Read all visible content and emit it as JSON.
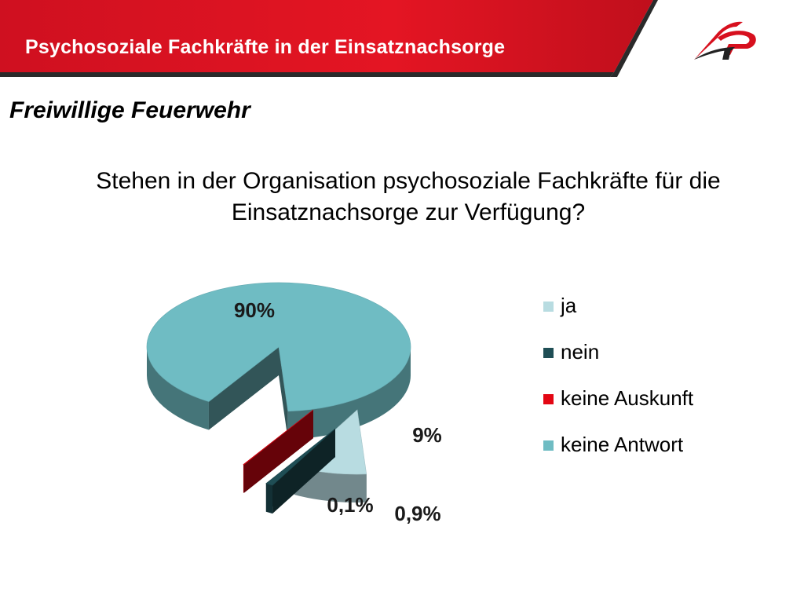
{
  "header": {
    "title": "Psychosoziale Fachkräfte in der Einsatznachsorge",
    "accent_color": "#d7101e"
  },
  "section_heading": "Freiwillige Feuerwehr",
  "question": "Stehen in der Organisation psychosoziale Fachkräfte für die Einsatznachsorge zur Verfügung?",
  "logo": {
    "icon": "organization-logo-icon"
  },
  "chart_data": {
    "type": "pie",
    "style": "3d-exploded",
    "title": "",
    "slices": [
      {
        "label": "ja",
        "value": 9,
        "display": "9%",
        "color": "#b8dce1"
      },
      {
        "label": "nein",
        "value": 0.9,
        "display": "0,9%",
        "color": "#1f4e55"
      },
      {
        "label": "keine Auskunft",
        "value": 0.1,
        "display": "0,1%",
        "color": "#e30613"
      },
      {
        "label": "keine Antwort",
        "value": 90,
        "display": "90%",
        "color": "#6fbcc3"
      }
    ],
    "legend_position": "right"
  }
}
